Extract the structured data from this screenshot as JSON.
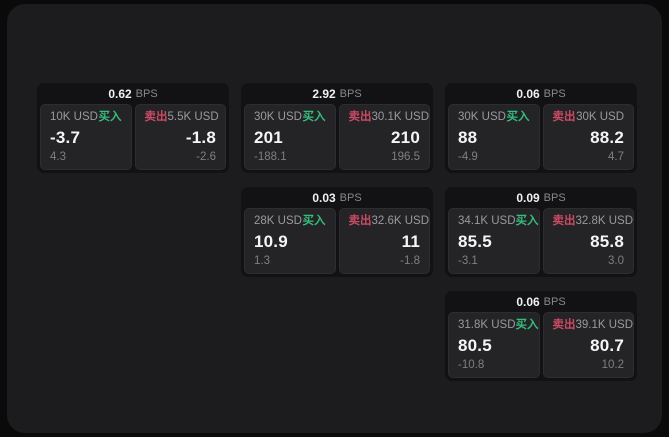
{
  "labels": {
    "bps_unit": "BPS",
    "buy": "买入",
    "sell": "卖出"
  },
  "colors": {
    "buy_green": "#35bd7d",
    "sell_red": "#cb4a63",
    "panel_bg": "#1c1c1e",
    "card_bg": "#121214",
    "cell_bg": "#242427"
  },
  "cards": [
    {
      "row": 1,
      "col": 1,
      "bps_value": "0.62",
      "buy": {
        "size": "10K USD",
        "price": "-3.7",
        "change": "4.3"
      },
      "sell": {
        "size": "5.5K USD",
        "price": "-1.8",
        "change": "-2.6"
      }
    },
    {
      "row": 1,
      "col": 2,
      "bps_value": "2.92",
      "buy": {
        "size": "30K USD",
        "price": "201",
        "change": "-188.1"
      },
      "sell": {
        "size": "30.1K USD",
        "price": "210",
        "change": "196.5"
      }
    },
    {
      "row": 1,
      "col": 3,
      "bps_value": "0.06",
      "buy": {
        "size": "30K USD",
        "price": "88",
        "change": "-4.9"
      },
      "sell": {
        "size": "30K USD",
        "price": "88.2",
        "change": "4.7"
      }
    },
    {
      "row": 2,
      "col": 2,
      "bps_value": "0.03",
      "buy": {
        "size": "28K USD",
        "price": "10.9",
        "change": "1.3"
      },
      "sell": {
        "size": "32.6K USD",
        "price": "11",
        "change": "-1.8"
      }
    },
    {
      "row": 2,
      "col": 3,
      "bps_value": "0.09",
      "buy": {
        "size": "34.1K USD",
        "price": "85.5",
        "change": "-3.1"
      },
      "sell": {
        "size": "32.8K USD",
        "price": "85.8",
        "change": "3.0"
      }
    },
    {
      "row": 3,
      "col": 3,
      "bps_value": "0.06",
      "buy": {
        "size": "31.8K USD",
        "price": "80.5",
        "change": "-10.8"
      },
      "sell": {
        "size": "39.1K USD",
        "price": "80.7",
        "change": "10.2"
      }
    }
  ]
}
